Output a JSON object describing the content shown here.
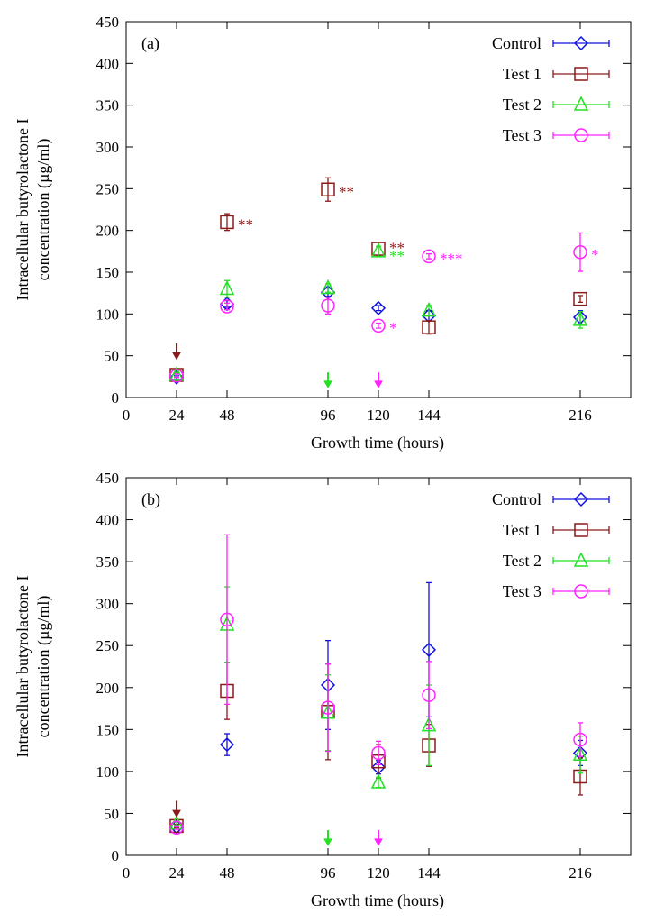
{
  "colors": {
    "control": "#1010e0",
    "test1": "#8b1a1a",
    "test2": "#22e022",
    "test3": "#ff22ff"
  },
  "chart_data": [
    {
      "type": "scatter",
      "panel_label": "(a)",
      "xlabel": "Growth time (hours)",
      "ylabel_line1": "Intracellular butyrolactone I",
      "ylabel_line2": "concentration (µg/ml)",
      "xlim": [
        0,
        240
      ],
      "ylim": [
        0,
        450
      ],
      "xticks": [
        0,
        24,
        48,
        96,
        120,
        144,
        216
      ],
      "xtick_labels": [
        "0",
        "24",
        "48",
        "96",
        "120",
        "144",
        "216"
      ],
      "yticks": [
        0,
        50,
        100,
        150,
        200,
        250,
        300,
        350,
        400,
        450
      ],
      "ytick_labels": [
        "0",
        "50",
        "100",
        "150",
        "200",
        "250",
        "300",
        "350",
        "400",
        "450"
      ],
      "legend_position": "top-right",
      "series": [
        {
          "name": "Control",
          "key": "control",
          "marker": "diamond",
          "x": [
            24,
            48,
            96,
            120,
            144,
            216
          ],
          "y": [
            24,
            112,
            126,
            107,
            98,
            96
          ],
          "err": [
            2,
            4,
            5,
            3,
            6,
            8
          ]
        },
        {
          "name": "Test 1",
          "key": "test1",
          "marker": "square",
          "x": [
            24,
            48,
            96,
            120,
            144,
            216
          ],
          "y": [
            27,
            210,
            249,
            178,
            84,
            118
          ],
          "err": [
            3,
            10,
            14,
            8,
            8,
            4
          ]
        },
        {
          "name": "Test 2",
          "key": "test2",
          "marker": "triangle",
          "x": [
            24,
            48,
            96,
            120,
            144,
            216
          ],
          "y": [
            27,
            130,
            131,
            175,
            104,
            93
          ],
          "err": [
            3,
            10,
            5,
            6,
            6,
            10
          ]
        },
        {
          "name": "Test 3",
          "key": "test3",
          "marker": "circle",
          "x": [
            24,
            48,
            96,
            120,
            144,
            216
          ],
          "y": [
            26,
            109,
            110,
            86,
            169,
            174
          ],
          "err": [
            2,
            4,
            10,
            3,
            3,
            23
          ]
        }
      ],
      "annotations": [
        {
          "x": 48,
          "y": 210,
          "text": "**",
          "key": "test1"
        },
        {
          "x": 96,
          "y": 249,
          "text": "**",
          "key": "test1"
        },
        {
          "x": 120,
          "y": 182,
          "text": "**",
          "key": "test1"
        },
        {
          "x": 120,
          "y": 172,
          "text": "**",
          "key": "test2"
        },
        {
          "x": 144,
          "y": 169,
          "text": "***",
          "key": "test3"
        },
        {
          "x": 120,
          "y": 86,
          "text": "*",
          "key": "test3"
        },
        {
          "x": 216,
          "y": 174,
          "text": "*",
          "key": "test3"
        }
      ],
      "arrows": [
        {
          "x": 24,
          "y_top": 65,
          "y_bottom": 46,
          "key": "test1"
        },
        {
          "x": 96,
          "y_top": 30,
          "y_bottom": 12,
          "key": "test2"
        },
        {
          "x": 120,
          "y_top": 30,
          "y_bottom": 12,
          "key": "test3"
        }
      ]
    },
    {
      "type": "scatter",
      "panel_label": "(b)",
      "xlabel": "Growth time (hours)",
      "ylabel_line1": "Intracellular butyrolactone I",
      "ylabel_line2": "concentration (µg/ml)",
      "xlim": [
        0,
        240
      ],
      "ylim": [
        0,
        450
      ],
      "xticks": [
        0,
        24,
        48,
        96,
        120,
        144,
        216
      ],
      "xtick_labels": [
        "0",
        "24",
        "48",
        "96",
        "120",
        "144",
        "216"
      ],
      "yticks": [
        0,
        50,
        100,
        150,
        200,
        250,
        300,
        350,
        400,
        450
      ],
      "ytick_labels": [
        "0",
        "50",
        "100",
        "150",
        "200",
        "250",
        "300",
        "350",
        "400",
        "450"
      ],
      "legend_position": "top-right",
      "series": [
        {
          "name": "Control",
          "key": "control",
          "marker": "diamond",
          "x": [
            24,
            48,
            96,
            120,
            144,
            216
          ],
          "y": [
            34,
            132,
            203,
            105,
            245,
            122
          ],
          "err": [
            2,
            13,
            53,
            8,
            80,
            15
          ]
        },
        {
          "name": "Test 1",
          "key": "test1",
          "marker": "square",
          "x": [
            24,
            48,
            96,
            120,
            144,
            216
          ],
          "y": [
            35,
            196,
            171,
            112,
            131,
            94
          ],
          "err": [
            2,
            34,
            57,
            20,
            25,
            22
          ]
        },
        {
          "name": "Test 2",
          "key": "test2",
          "marker": "triangle",
          "x": [
            24,
            48,
            96,
            120,
            144,
            216
          ],
          "y": [
            38,
            275,
            170,
            87,
            155,
            120
          ],
          "err": [
            2,
            45,
            45,
            6,
            48,
            22
          ]
        },
        {
          "name": "Test 3",
          "key": "test3",
          "marker": "circle",
          "x": [
            24,
            48,
            96,
            120,
            144,
            216
          ],
          "y": [
            33,
            281,
            176,
            122,
            191,
            138
          ],
          "err": [
            2,
            101,
            52,
            14,
            40,
            20
          ]
        }
      ],
      "annotations": [],
      "arrows": [
        {
          "x": 24,
          "y_top": 65,
          "y_bottom": 46,
          "key": "test1"
        },
        {
          "x": 96,
          "y_top": 30,
          "y_bottom": 12,
          "key": "test2"
        },
        {
          "x": 120,
          "y_top": 30,
          "y_bottom": 12,
          "key": "test3"
        }
      ]
    }
  ]
}
